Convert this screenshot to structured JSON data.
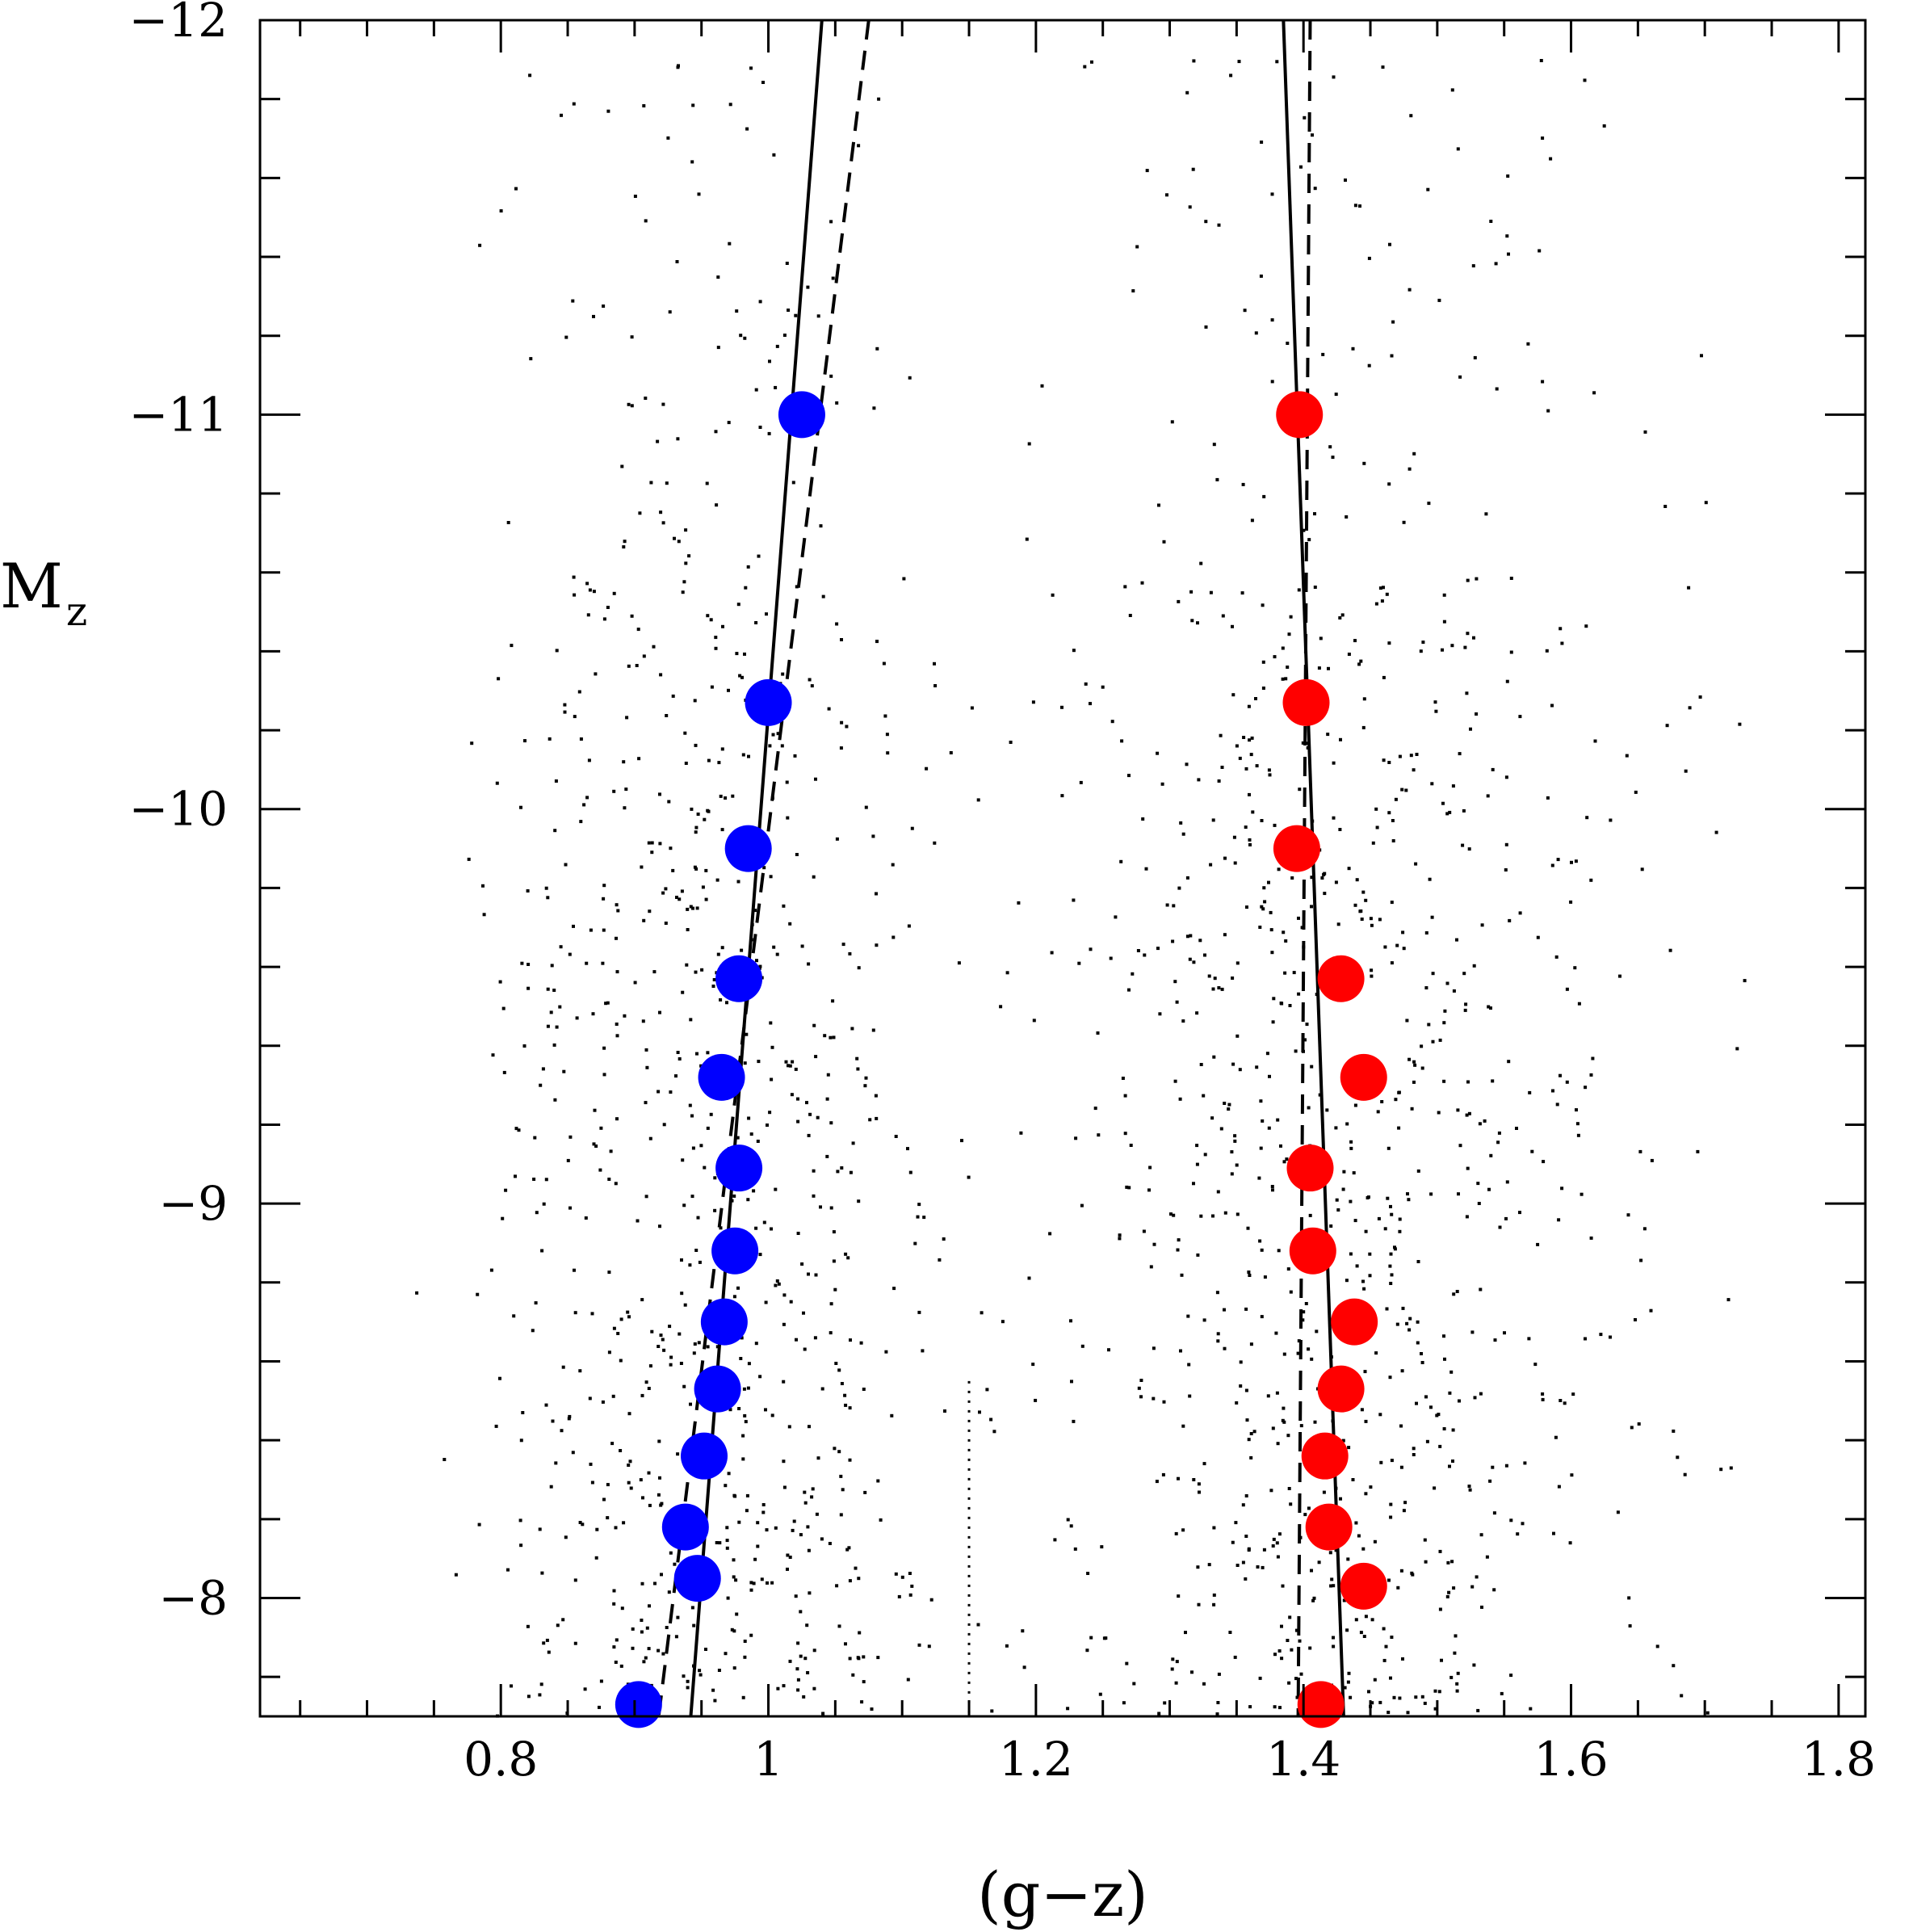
{
  "chart_data": {
    "type": "scatter",
    "title": "",
    "xlabel": "(g−z)",
    "ylabel": "M",
    "ylabel_subscript": "z",
    "xlim": [
      0.62,
      1.82
    ],
    "ylim": [
      -12,
      -7.7
    ],
    "y_inverted": true,
    "x_ticks": [
      0.8,
      1.0,
      1.2,
      1.4,
      1.6,
      1.8
    ],
    "x_tick_labels": [
      "0.8",
      "1",
      "1.2",
      "1.4",
      "1.6",
      "1.8"
    ],
    "y_ticks": [
      -12,
      -11,
      -10,
      -9,
      -8
    ],
    "y_tick_labels": [
      "−12",
      "−11",
      "−10",
      "−9",
      "−8"
    ],
    "series": [
      {
        "color": "#0000ff",
        "marker": "circle",
        "x": [
          1.025,
          1.0,
          0.985,
          0.978,
          0.965,
          0.978,
          0.975,
          0.967,
          0.962,
          0.952,
          0.938,
          0.947,
          0.903
        ],
        "y": [
          -11.0,
          -10.27,
          -9.9,
          -9.57,
          -9.32,
          -9.09,
          -8.88,
          -8.7,
          -8.53,
          -8.36,
          -8.18,
          -8.05,
          -7.73
        ]
      },
      {
        "color": "#ff0000",
        "marker": "circle",
        "x": [
          1.397,
          1.402,
          1.395,
          1.428,
          1.445,
          1.405,
          1.407,
          1.438,
          1.428,
          1.416,
          1.419,
          1.445,
          1.413
        ],
        "y": [
          -11.0,
          -10.27,
          -9.9,
          -9.57,
          -9.32,
          -9.09,
          -8.88,
          -8.7,
          -8.53,
          -8.36,
          -8.18,
          -8.03,
          -7.73
        ]
      }
    ],
    "lines": [
      {
        "style": "solid",
        "x": [
          1.04,
          0.942
        ],
        "y": [
          -12,
          -7.7
        ]
      },
      {
        "style": "dashed",
        "x": [
          1.075,
          0.918
        ],
        "y": [
          -12,
          -7.7
        ]
      },
      {
        "style": "solid",
        "x": [
          1.385,
          1.43
        ],
        "y": [
          -12,
          -7.7
        ]
      },
      {
        "style": "dashed",
        "x": [
          1.405,
          1.396
        ],
        "y": [
          -12,
          -7.7
        ]
      },
      {
        "style": "dotted",
        "x": [
          1.15,
          1.15
        ],
        "y": [
          -8.55,
          -7.7
        ]
      }
    ],
    "background_points": "dense field of small black dots, approx. 1800 points concentrated between g-z 0.8 and 1.7"
  }
}
